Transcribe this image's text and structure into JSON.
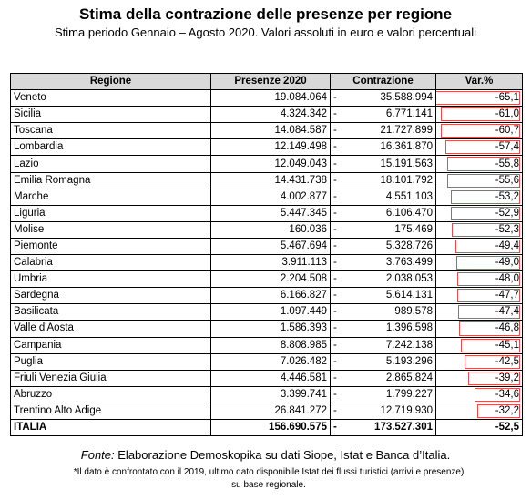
{
  "title": "Stima della contrazione delle presenze per regione",
  "subtitle": "Stima periodo Gennaio – Agosto 2020. Valori assoluti in euro e valori percentuali",
  "table": {
    "headers": [
      "Regione",
      "Presenze 2020",
      "Contrazione",
      "Var.%"
    ],
    "dash": "-",
    "rows": [
      {
        "region": "Veneto",
        "presenze": "19.084.064",
        "contrazione": "35.588.994",
        "var": "-65,1",
        "pct": 65.1
      },
      {
        "region": "Sicilia",
        "presenze": "4.324.342",
        "contrazione": "6.771.141",
        "var": "-61,0",
        "pct": 61.0
      },
      {
        "region": "Toscana",
        "presenze": "14.084.587",
        "contrazione": "21.727.899",
        "var": "-60,7",
        "pct": 60.7
      },
      {
        "region": "Lombardia",
        "presenze": "12.149.498",
        "contrazione": "16.361.870",
        "var": "-57,4",
        "pct": 57.4
      },
      {
        "region": "Lazio",
        "presenze": "12.049.043",
        "contrazione": "15.191.563",
        "var": "-55,8",
        "pct": 55.8
      },
      {
        "region": "Emilia Romagna",
        "presenze": "14.431.738",
        "contrazione": "18.101.792",
        "var": "-55,6",
        "pct": 55.6
      },
      {
        "region": "Marche",
        "presenze": "4.002.877",
        "contrazione": "4.551.103",
        "var": "-53,2",
        "pct": 53.2
      },
      {
        "region": "Liguria",
        "presenze": "5.447.345",
        "contrazione": "6.106.470",
        "var": "-52,9",
        "pct": 52.9
      },
      {
        "region": "Molise",
        "presenze": "160.036",
        "contrazione": "175.469",
        "var": "-52,3",
        "pct": 52.3
      },
      {
        "region": "Piemonte",
        "presenze": "5.467.694",
        "contrazione": "5.328.726",
        "var": "-49,4",
        "pct": 49.4
      },
      {
        "region": "Calabria",
        "presenze": "3.911.113",
        "contrazione": "3.763.499",
        "var": "-49,0",
        "pct": 49.0
      },
      {
        "region": "Umbria",
        "presenze": "2.204.508",
        "contrazione": "2.038.053",
        "var": "-48,0",
        "pct": 48.0
      },
      {
        "region": "Sardegna",
        "presenze": "6.166.827",
        "contrazione": "5.614.131",
        "var": "-47,7",
        "pct": 47.7
      },
      {
        "region": "Basilicata",
        "presenze": "1.097.449",
        "contrazione": "989.578",
        "var": "-47,4",
        "pct": 47.4
      },
      {
        "region": "Valle d'Aosta",
        "presenze": "1.586.393",
        "contrazione": "1.396.598",
        "var": "-46,8",
        "pct": 46.8
      },
      {
        "region": "Campania",
        "presenze": "8.808.985",
        "contrazione": "7.242.138",
        "var": "-45,1",
        "pct": 45.1
      },
      {
        "region": "Puglia",
        "presenze": "7.026.482",
        "contrazione": "5.193.296",
        "var": "-42,5",
        "pct": 42.5
      },
      {
        "region": "Friuli Venezia Giulia",
        "presenze": "4.446.581",
        "contrazione": "2.865.824",
        "var": "-39,2",
        "pct": 39.2
      },
      {
        "region": "Abruzzo",
        "presenze": "3.399.741",
        "contrazione": "1.799.227",
        "var": "-34,6",
        "pct": 34.6
      },
      {
        "region": "Trentino Alto Adige",
        "presenze": "26.841.272",
        "contrazione": "12.719.930",
        "var": "-32,2",
        "pct": 32.2
      }
    ],
    "total": {
      "region": "ITALIA",
      "presenze": "156.690.575",
      "contrazione": "173.527.301",
      "var": "-52,5"
    }
  },
  "footer": {
    "fonte_label": "Fonte:",
    "fonte_text": "Elaborazione Demoskopika su dati Siope, Istat e Banca d’Italia.",
    "note_line1": "*Il dato è confrontato con il 2019, ultimo dato disponibile Istat dei flussi turistici (arrivi e presenze)",
    "note_line2": "su base regionale."
  },
  "colors": {
    "bar_border": "#d9534f",
    "header_bg": "#d9d9d9"
  }
}
